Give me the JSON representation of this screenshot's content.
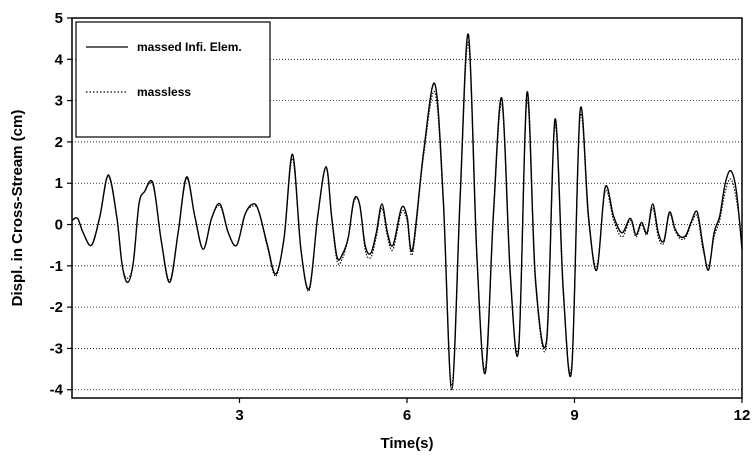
{
  "chart_data": {
    "type": "line",
    "title": "",
    "xlabel": "Time(s)",
    "ylabel": "Displ. in Cross-Stream (cm)",
    "xlim": [
      0,
      12
    ],
    "ylim": [
      -4.2,
      5
    ],
    "x_ticks": [
      3,
      6,
      9,
      12
    ],
    "x_tick_labels": [
      "3",
      "6",
      "9",
      "12"
    ],
    "y_ticks": [
      -4,
      -3,
      -2,
      -1,
      0,
      1,
      2,
      3,
      4,
      5
    ],
    "y_tick_labels": [
      "-4",
      "-3",
      "-2",
      "-1",
      "0",
      "1",
      "2",
      "3",
      "4",
      "5"
    ],
    "grid": "horizontal dotted",
    "legend_position": "top-left",
    "series": [
      {
        "name": "massed Infi. Elem.",
        "style": "solid",
        "color": "#000000",
        "x": [
          0,
          0.1,
          0.2,
          0.35,
          0.5,
          0.65,
          0.8,
          0.9,
          1.0,
          1.1,
          1.2,
          1.3,
          1.45,
          1.6,
          1.75,
          1.9,
          2.05,
          2.2,
          2.35,
          2.5,
          2.65,
          2.8,
          2.95,
          3.1,
          3.25,
          3.35,
          3.5,
          3.65,
          3.8,
          3.95,
          4.1,
          4.25,
          4.4,
          4.55,
          4.65,
          4.75,
          4.85,
          4.95,
          5.05,
          5.15,
          5.25,
          5.35,
          5.45,
          5.55,
          5.65,
          5.75,
          5.9,
          6.0,
          6.1,
          6.3,
          6.5,
          6.65,
          6.8,
          6.95,
          7.1,
          7.25,
          7.4,
          7.55,
          7.7,
          7.85,
          8.0,
          8.15,
          8.3,
          8.5,
          8.65,
          8.8,
          8.95,
          9.1,
          9.25,
          9.4,
          9.55,
          9.7,
          9.85,
          10.0,
          10.1,
          10.2,
          10.3,
          10.4,
          10.5,
          10.6,
          10.7,
          10.8,
          10.9,
          11.0,
          11.1,
          11.2,
          11.3,
          11.4,
          11.5,
          11.6,
          11.7,
          11.8,
          11.9,
          12.0
        ],
        "values": [
          0.1,
          0.15,
          -0.2,
          -0.5,
          0.2,
          1.2,
          0.2,
          -1.0,
          -1.4,
          -0.9,
          0.5,
          0.8,
          1.0,
          -0.4,
          -1.4,
          -0.2,
          1.15,
          0.2,
          -0.6,
          0.15,
          0.5,
          -0.2,
          -0.5,
          0.25,
          0.5,
          0.3,
          -0.5,
          -1.2,
          -0.3,
          1.7,
          -0.6,
          -1.55,
          0.2,
          1.4,
          0.2,
          -0.8,
          -0.7,
          -0.3,
          0.6,
          0.5,
          -0.5,
          -0.7,
          -0.2,
          0.5,
          -0.2,
          -0.5,
          0.4,
          0.2,
          -0.6,
          1.8,
          3.4,
          0.6,
          -4.0,
          0.6,
          4.6,
          -0.7,
          -3.6,
          0.3,
          3.05,
          -1.2,
          -3.0,
          3.2,
          -1.3,
          -2.8,
          2.55,
          -1.6,
          -3.5,
          2.75,
          0.2,
          -1.1,
          0.9,
          0.2,
          -0.2,
          0.15,
          -0.25,
          0.05,
          -0.2,
          0.5,
          -0.2,
          -0.4,
          0.3,
          -0.1,
          -0.3,
          -0.25,
          0.1,
          0.3,
          -0.5,
          -1.1,
          -0.2,
          0.2,
          1.0,
          1.3,
          0.8,
          -0.6
        ]
      },
      {
        "name": "massless",
        "style": "dotted",
        "color": "#000000",
        "x": [
          0,
          0.1,
          0.2,
          0.35,
          0.5,
          0.65,
          0.8,
          0.9,
          1.0,
          1.1,
          1.2,
          1.3,
          1.45,
          1.6,
          1.75,
          1.9,
          2.05,
          2.2,
          2.35,
          2.5,
          2.65,
          2.8,
          2.95,
          3.1,
          3.25,
          3.35,
          3.5,
          3.65,
          3.8,
          3.95,
          4.1,
          4.25,
          4.4,
          4.55,
          4.65,
          4.75,
          4.85,
          4.95,
          5.05,
          5.15,
          5.25,
          5.35,
          5.45,
          5.55,
          5.65,
          5.75,
          5.9,
          6.0,
          6.1,
          6.3,
          6.5,
          6.65,
          6.8,
          6.95,
          7.1,
          7.25,
          7.4,
          7.55,
          7.7,
          7.85,
          8.0,
          8.15,
          8.3,
          8.5,
          8.65,
          8.8,
          8.95,
          9.1,
          9.25,
          9.4,
          9.55,
          9.7,
          9.85,
          10.0,
          10.1,
          10.2,
          10.3,
          10.4,
          10.5,
          10.6,
          10.7,
          10.8,
          10.9,
          11.0,
          11.1,
          11.2,
          11.3,
          11.4,
          11.5,
          11.6,
          11.7,
          11.8,
          11.9,
          12.0
        ],
        "values": [
          0.1,
          0.15,
          -0.2,
          -0.5,
          0.2,
          1.15,
          0.2,
          -1.0,
          -1.3,
          -0.9,
          0.5,
          0.8,
          0.95,
          -0.4,
          -1.35,
          -0.2,
          1.1,
          0.2,
          -0.6,
          0.15,
          0.45,
          -0.2,
          -0.5,
          0.25,
          0.45,
          0.3,
          -0.55,
          -1.25,
          -0.3,
          1.6,
          -0.6,
          -1.6,
          0.2,
          1.35,
          0.15,
          -0.9,
          -0.8,
          -0.3,
          0.55,
          0.5,
          -0.6,
          -0.8,
          -0.3,
          0.4,
          -0.3,
          -0.6,
          0.3,
          0.1,
          -0.7,
          1.7,
          3.2,
          0.5,
          -3.9,
          0.5,
          4.4,
          -0.8,
          -3.5,
          0.2,
          2.9,
          -1.3,
          -2.9,
          3.0,
          -1.4,
          -2.9,
          2.4,
          -1.7,
          -3.4,
          2.6,
          0.1,
          -1.0,
          0.8,
          0.1,
          -0.3,
          0.1,
          -0.3,
          0.0,
          -0.25,
          0.4,
          -0.3,
          -0.45,
          0.25,
          -0.15,
          -0.35,
          -0.3,
          0.05,
          0.2,
          -0.6,
          -1.0,
          -0.3,
          0.1,
          0.8,
          1.1,
          0.6,
          -0.4
        ]
      }
    ]
  }
}
